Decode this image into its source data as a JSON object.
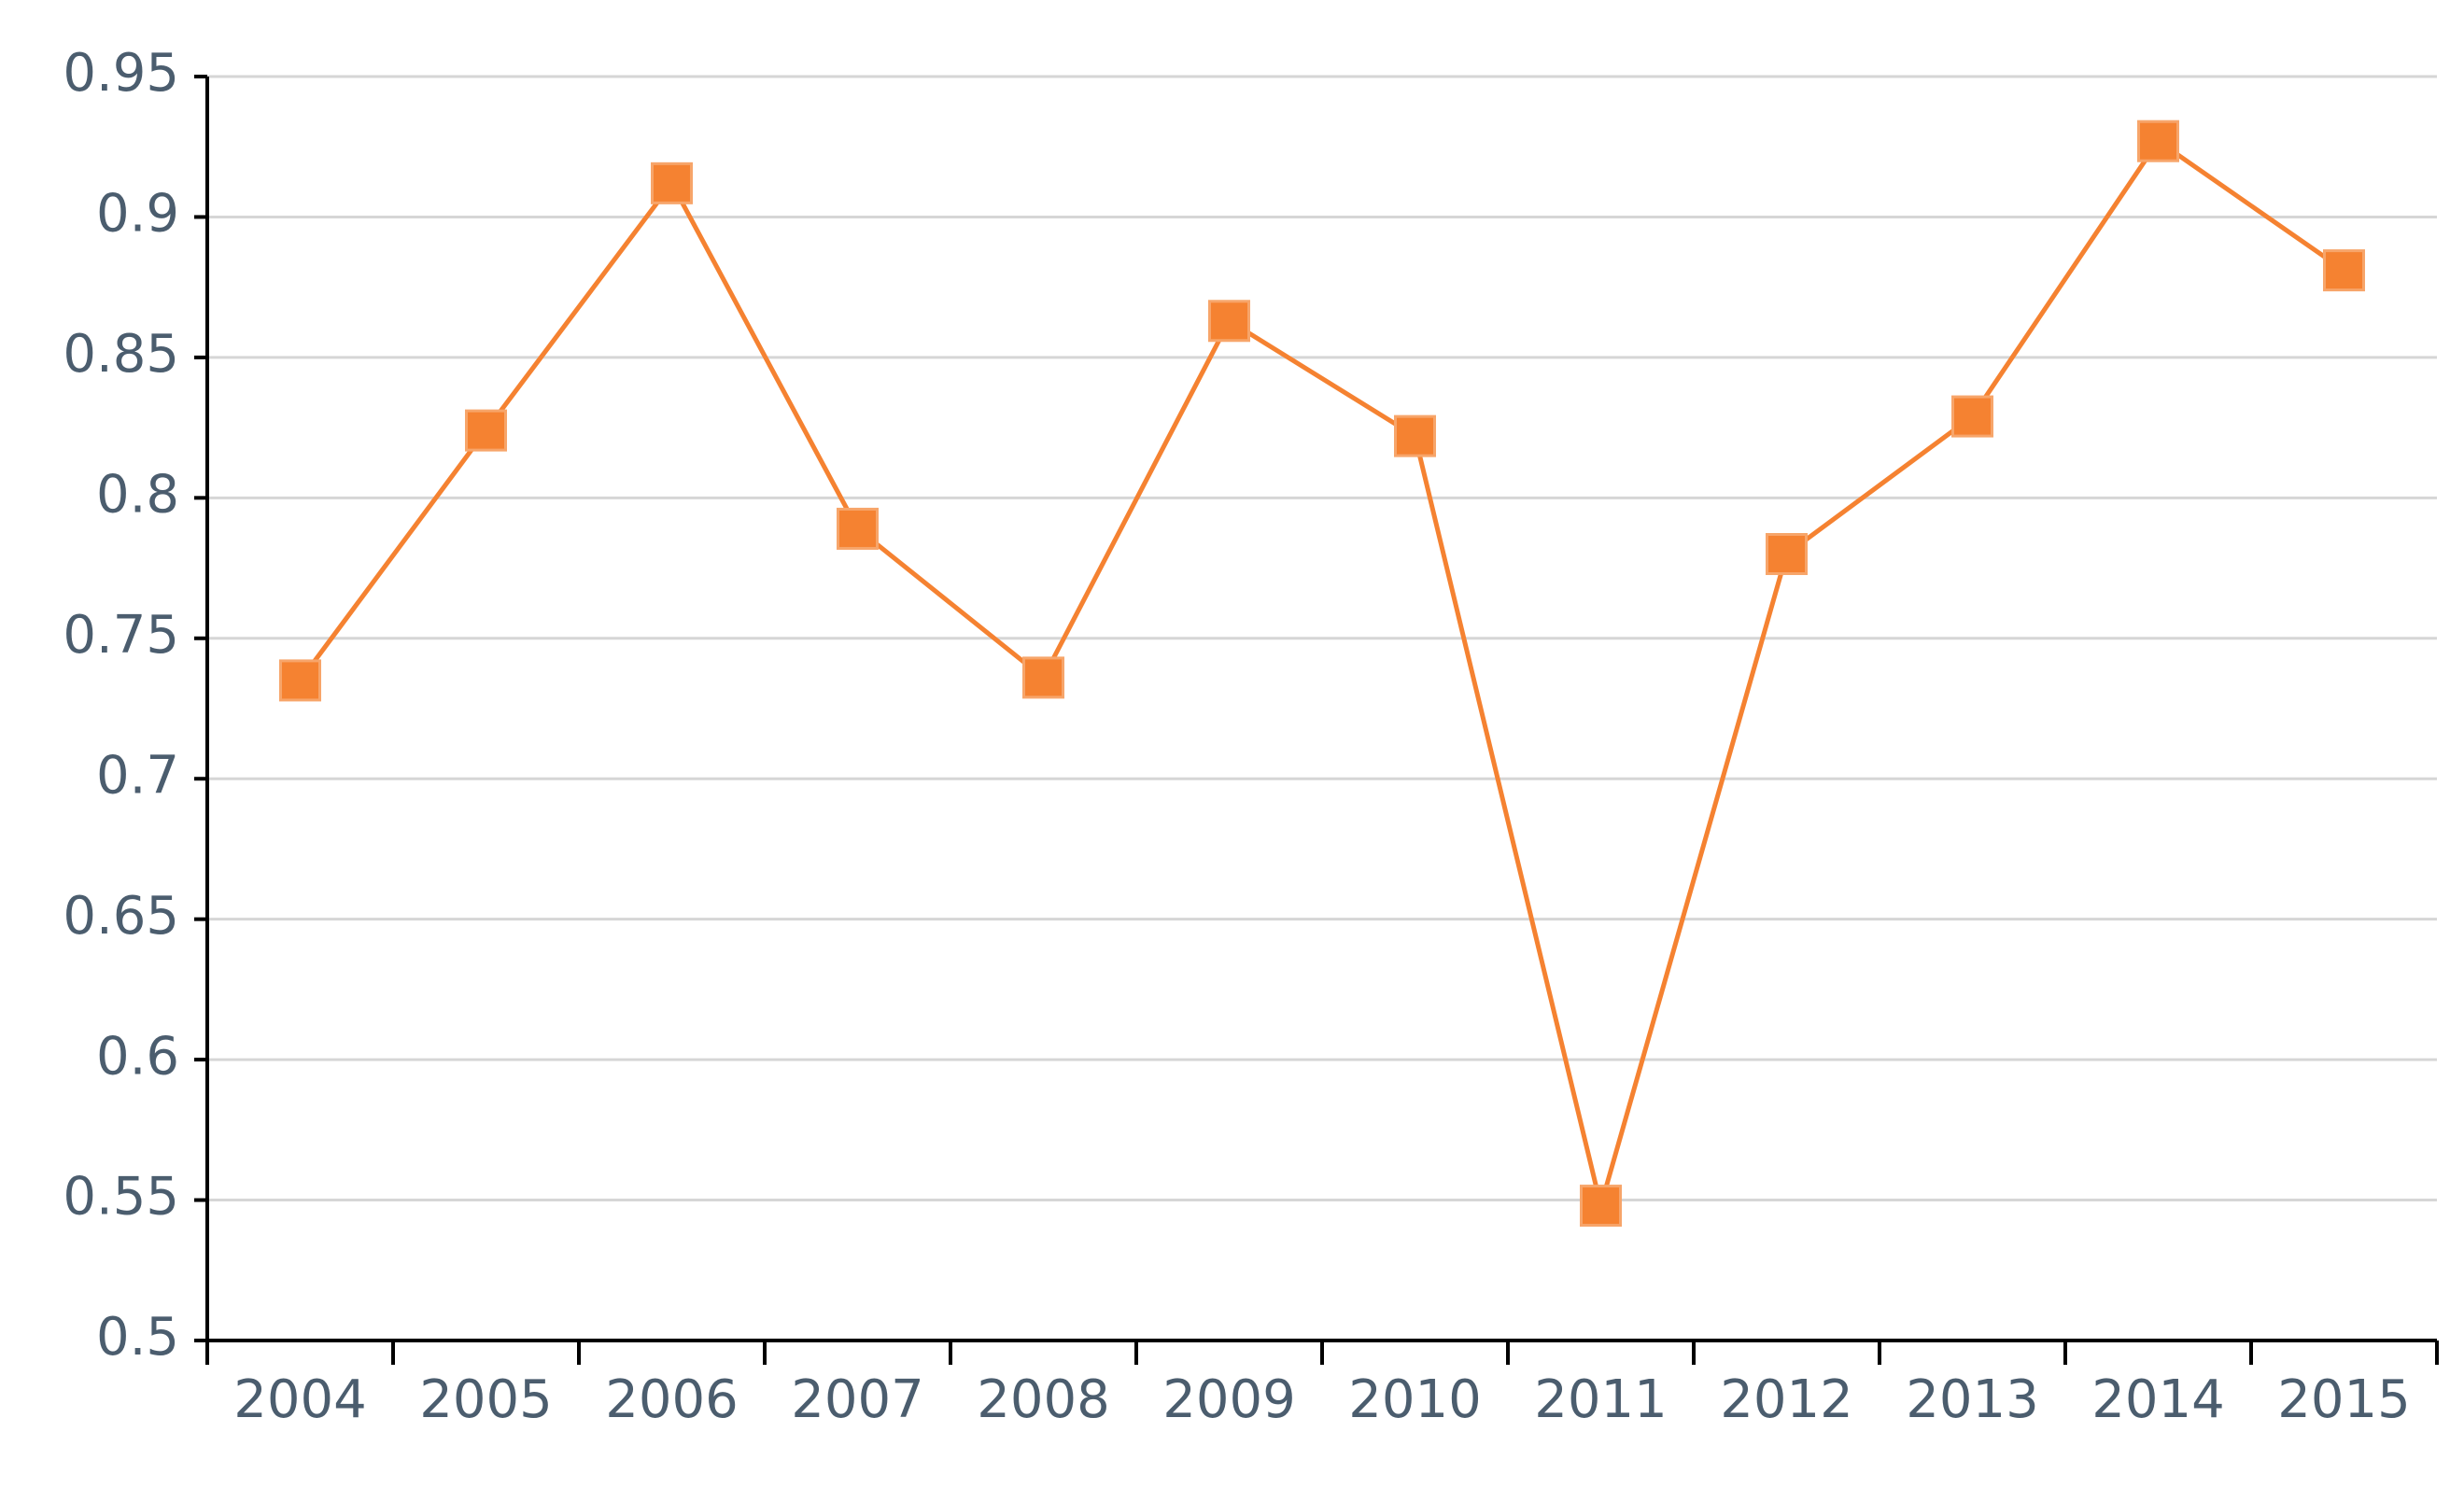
{
  "chart_data": {
    "type": "line",
    "categories": [
      "2004",
      "2005",
      "2006",
      "2007",
      "2008",
      "2009",
      "2010",
      "2011",
      "2012",
      "2013",
      "2014",
      "2015"
    ],
    "series": [
      {
        "values": [
          0.735,
          0.824,
          0.912,
          0.789,
          0.736,
          0.863,
          0.822,
          0.548,
          0.78,
          0.829,
          0.927,
          0.881
        ],
        "color": "#f58231",
        "marker": "square"
      }
    ],
    "y_ticks": [
      "0.5",
      "0.55",
      "0.6",
      "0.65",
      "0.7",
      "0.75",
      "0.8",
      "0.85",
      "0.9",
      "0.95"
    ],
    "ylim": [
      0.5,
      0.95
    ],
    "grid": "horizontal",
    "title": "",
    "xlabel": "",
    "ylabel": ""
  }
}
